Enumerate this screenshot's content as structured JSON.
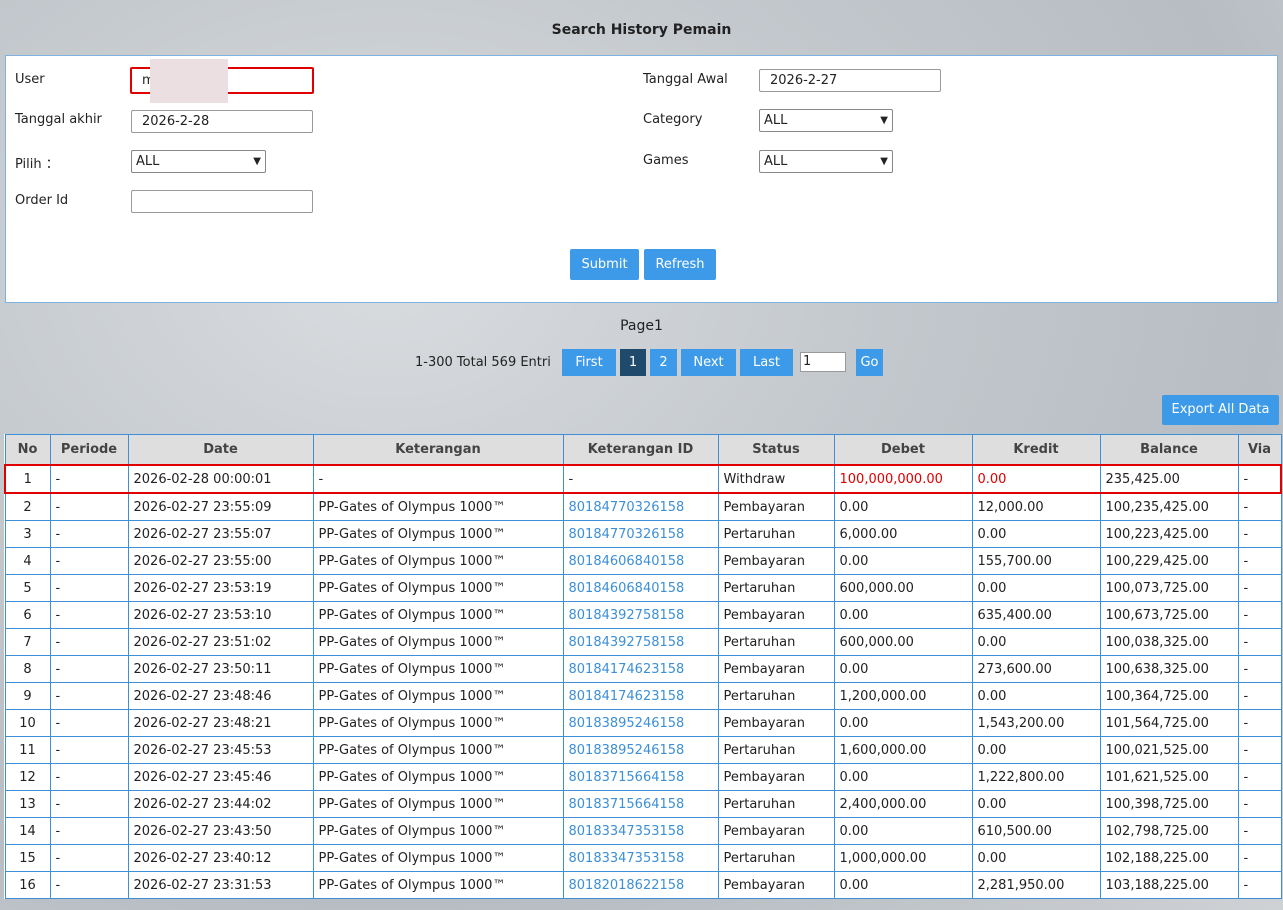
{
  "page_title": "Search History Pemain",
  "form": {
    "user_label": "User",
    "user_value": "m",
    "tanggal_akhir_label": "Tanggal akhir",
    "tanggal_akhir_value": "2026-2-28",
    "pilih_label": "Pilih ：",
    "pilih_value": "ALL",
    "order_id_label": "Order Id",
    "order_id_value": "",
    "tanggal_awal_label": "Tanggal Awal",
    "tanggal_awal_value": "2026-2-27",
    "category_label": "Category",
    "category_value": "ALL",
    "games_label": "Games",
    "games_value": "ALL",
    "submit_label": "Submit",
    "refresh_label": "Refresh"
  },
  "pagination": {
    "page_label": "Page1",
    "entries": "1-300 Total 569 Entri",
    "first": "First",
    "pages": [
      "1",
      "2"
    ],
    "current_page": "1",
    "next": "Next",
    "last": "Last",
    "go_value": "1",
    "go": "Go"
  },
  "export_label": "Export All Data",
  "colors": {
    "accent": "#3d9ae8",
    "highlight": "#e00000",
    "link": "#3d8fd8"
  },
  "table": {
    "columns": [
      "No",
      "Periode",
      "Date",
      "Keterangan",
      "Keterangan ID",
      "Status",
      "Debet",
      "Kredit",
      "Balance",
      "Via"
    ],
    "rows": [
      [
        "1",
        "-",
        "2026-02-28 00:00:01",
        "-",
        "-",
        "Withdraw",
        "100,000,000.00",
        "0.00",
        "235,425.00",
        "-"
      ],
      [
        "2",
        "-",
        "2026-02-27 23:55:09",
        "PP-Gates of Olympus 1000™",
        "80184770326158",
        "Pembayaran",
        "0.00",
        "12,000.00",
        "100,235,425.00",
        "-"
      ],
      [
        "3",
        "-",
        "2026-02-27 23:55:07",
        "PP-Gates of Olympus 1000™",
        "80184770326158",
        "Pertaruhan",
        "6,000.00",
        "0.00",
        "100,223,425.00",
        "-"
      ],
      [
        "4",
        "-",
        "2026-02-27 23:55:00",
        "PP-Gates of Olympus 1000™",
        "80184606840158",
        "Pembayaran",
        "0.00",
        "155,700.00",
        "100,229,425.00",
        "-"
      ],
      [
        "5",
        "-",
        "2026-02-27 23:53:19",
        "PP-Gates of Olympus 1000™",
        "80184606840158",
        "Pertaruhan",
        "600,000.00",
        "0.00",
        "100,073,725.00",
        "-"
      ],
      [
        "6",
        "-",
        "2026-02-27 23:53:10",
        "PP-Gates of Olympus 1000™",
        "80184392758158",
        "Pembayaran",
        "0.00",
        "635,400.00",
        "100,673,725.00",
        "-"
      ],
      [
        "7",
        "-",
        "2026-02-27 23:51:02",
        "PP-Gates of Olympus 1000™",
        "80184392758158",
        "Pertaruhan",
        "600,000.00",
        "0.00",
        "100,038,325.00",
        "-"
      ],
      [
        "8",
        "-",
        "2026-02-27 23:50:11",
        "PP-Gates of Olympus 1000™",
        "80184174623158",
        "Pembayaran",
        "0.00",
        "273,600.00",
        "100,638,325.00",
        "-"
      ],
      [
        "9",
        "-",
        "2026-02-27 23:48:46",
        "PP-Gates of Olympus 1000™",
        "80184174623158",
        "Pertaruhan",
        "1,200,000.00",
        "0.00",
        "100,364,725.00",
        "-"
      ],
      [
        "10",
        "-",
        "2026-02-27 23:48:21",
        "PP-Gates of Olympus 1000™",
        "80183895246158",
        "Pembayaran",
        "0.00",
        "1,543,200.00",
        "101,564,725.00",
        "-"
      ],
      [
        "11",
        "-",
        "2026-02-27 23:45:53",
        "PP-Gates of Olympus 1000™",
        "80183895246158",
        "Pertaruhan",
        "1,600,000.00",
        "0.00",
        "100,021,525.00",
        "-"
      ],
      [
        "12",
        "-",
        "2026-02-27 23:45:46",
        "PP-Gates of Olympus 1000™",
        "80183715664158",
        "Pembayaran",
        "0.00",
        "1,222,800.00",
        "101,621,525.00",
        "-"
      ],
      [
        "13",
        "-",
        "2026-02-27 23:44:02",
        "PP-Gates of Olympus 1000™",
        "80183715664158",
        "Pertaruhan",
        "2,400,000.00",
        "0.00",
        "100,398,725.00",
        "-"
      ],
      [
        "14",
        "-",
        "2026-02-27 23:43:50",
        "PP-Gates of Olympus 1000™",
        "80183347353158",
        "Pembayaran",
        "0.00",
        "610,500.00",
        "102,798,725.00",
        "-"
      ],
      [
        "15",
        "-",
        "2026-02-27 23:40:12",
        "PP-Gates of Olympus 1000™",
        "80183347353158",
        "Pertaruhan",
        "1,000,000.00",
        "0.00",
        "102,188,225.00",
        "-"
      ],
      [
        "16",
        "-",
        "2026-02-27 23:31:53",
        "PP-Gates of Olympus 1000™",
        "80182018622158",
        "Pembayaran",
        "0.00",
        "2,281,950.00",
        "103,188,225.00",
        "-"
      ]
    ]
  }
}
